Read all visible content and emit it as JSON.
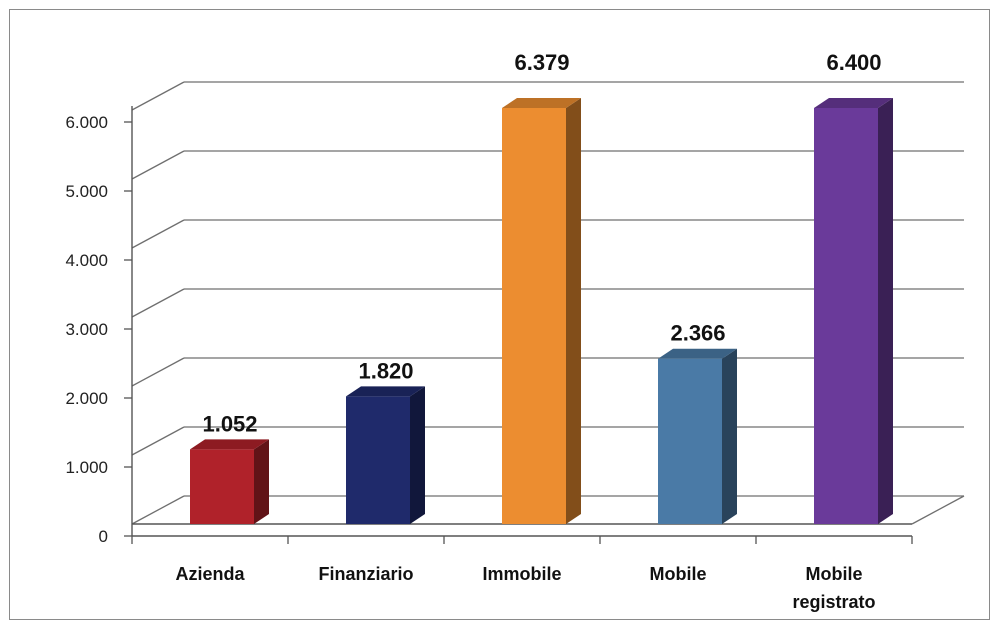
{
  "chart_data": {
    "type": "bar",
    "style": "3d-column",
    "categories": [
      "Azienda",
      "Finanziario",
      "Immobile",
      "Mobile",
      "Mobile registrato"
    ],
    "values": [
      1052,
      1820,
      6379,
      2366,
      6400
    ],
    "data_labels": [
      "1.052",
      "1.820",
      "6.379",
      "2.366",
      "6.400"
    ],
    "y_tick_labels": [
      "0",
      "1.000",
      "2.000",
      "3.000",
      "4.000",
      "5.000",
      "6.000"
    ],
    "y_ticks": [
      0,
      1000,
      2000,
      3000,
      4000,
      5000,
      6000
    ],
    "ylim": [
      0,
      6000
    ],
    "grid": true,
    "legend": "none",
    "colors": [
      "#b0222a",
      "#1f2a6b",
      "#ec8d30",
      "#4a7aa6",
      "#6a3a9a"
    ]
  }
}
